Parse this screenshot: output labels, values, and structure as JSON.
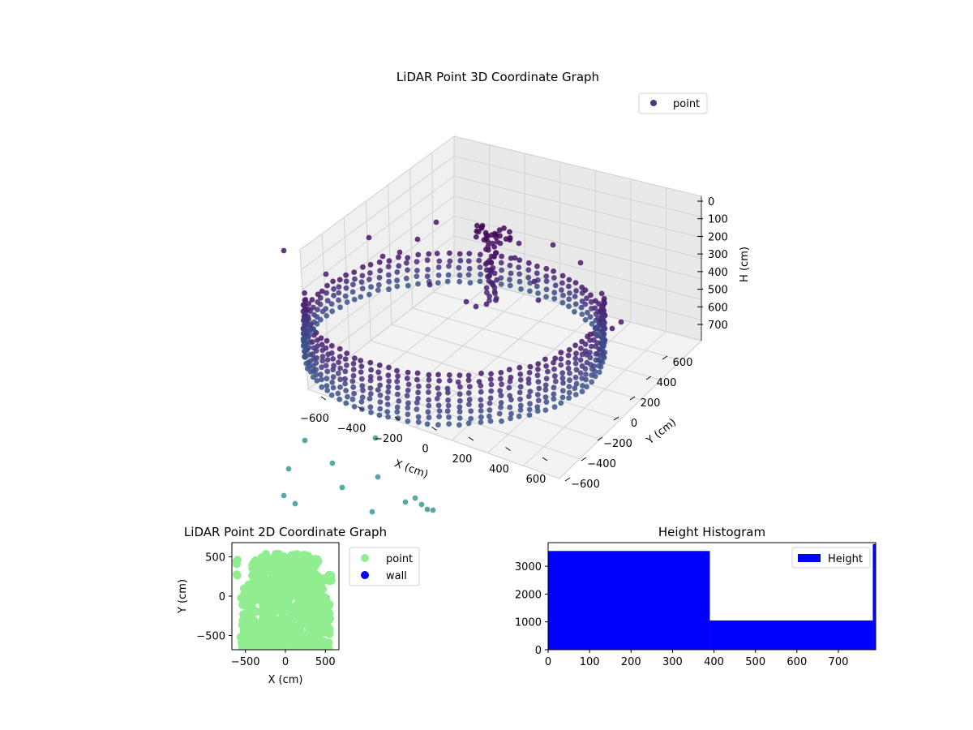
{
  "chart_data": [
    {
      "type": "scatter3d",
      "title": "LiDAR Point 3D Coordinate Graph",
      "xlabel": "X (cm)",
      "ylabel": "Y (cm)",
      "zlabel": "H (cm)",
      "xticks": [
        "−600",
        "−400",
        "−200",
        "0",
        "200",
        "400",
        "600"
      ],
      "yticks": [
        "−600",
        "−400",
        "−200",
        "0",
        "200",
        "400",
        "600"
      ],
      "zticks": [
        "0",
        "100",
        "200",
        "300",
        "400",
        "500",
        "600",
        "700"
      ],
      "xlim": [
        -700,
        700
      ],
      "ylim": [
        -700,
        700
      ],
      "zlim": [
        0,
        760
      ],
      "zinverted": true,
      "grid": true,
      "legend": {
        "position": "top-right",
        "entries": [
          {
            "name": "point",
            "color": "#433a82"
          }
        ]
      },
      "colormap": "viridis",
      "description_of_points": "circular wall of LiDAR points of radius about 550 cm spanning heights about 250 to 700 cm, plus a central column and scattered outliers"
    },
    {
      "type": "scatter",
      "title": "LiDAR Point 2D Coordinate Graph",
      "xlabel": "X (cm)",
      "ylabel": "Y (cm)",
      "xticks": [
        "−500",
        "0",
        "500"
      ],
      "yticks": [
        "−500",
        "0",
        "500"
      ],
      "xlim": [
        -670,
        670
      ],
      "ylim": [
        -680,
        680
      ],
      "legend": {
        "position": "outside-right",
        "entries": [
          {
            "name": "point",
            "color": "#90ee90"
          },
          {
            "name": "wall",
            "color": "#0000ff"
          }
        ]
      }
    },
    {
      "type": "bar",
      "title": "Height Histogram",
      "xticks": [
        "0",
        "100",
        "200",
        "300",
        "400",
        "500",
        "600",
        "700"
      ],
      "yticks": [
        "0",
        "1000",
        "2000",
        "3000"
      ],
      "xlim": [
        0,
        790
      ],
      "ylim": [
        0,
        3850
      ],
      "bins": [
        {
          "start": 0,
          "end": 390,
          "count": 3550
        },
        {
          "start": 390,
          "end": 783,
          "count": 1050
        },
        {
          "start": 783,
          "end": 790,
          "count": 3800
        }
      ],
      "color": "#0000ff",
      "legend": {
        "position": "top-right",
        "entries": [
          {
            "name": "Height",
            "color": "#0000ff"
          }
        ]
      }
    }
  ]
}
